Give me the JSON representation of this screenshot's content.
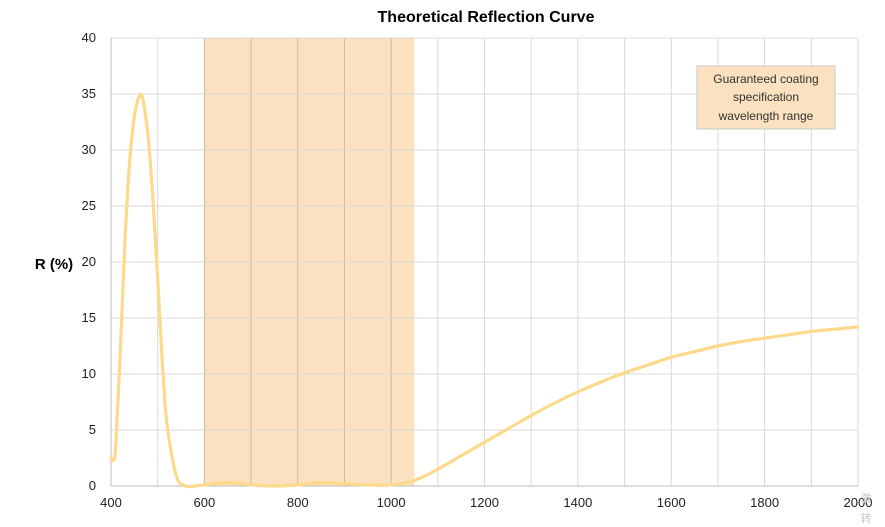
{
  "chart_data": {
    "type": "line",
    "title": "Theoretical Reflection Curve",
    "xlabel": "",
    "ylabel": "R (%)",
    "xlim": [
      400,
      2000
    ],
    "ylim": [
      0,
      40
    ],
    "x_ticks": [
      400,
      600,
      800,
      1000,
      1200,
      1400,
      1600,
      1800,
      2000
    ],
    "y_ticks": [
      0,
      5,
      10,
      15,
      20,
      25,
      30,
      35,
      40
    ],
    "grid": true,
    "highlight_band": {
      "x_range": [
        600,
        1050
      ],
      "color": "#fbe1bf",
      "note": [
        "Guaranteed coating",
        "specification",
        "wavelength range"
      ]
    },
    "series": [
      {
        "color": "#fcd98b",
        "x": [
          400,
          405,
          410,
          420,
          430,
          440,
          450,
          460,
          465,
          470,
          480,
          490,
          500,
          510,
          520,
          540,
          560,
          580,
          600,
          650,
          700,
          750,
          800,
          850,
          900,
          950,
          1000,
          1050,
          1100,
          1150,
          1200,
          1250,
          1300,
          1350,
          1400,
          1450,
          1500,
          1550,
          1600,
          1650,
          1700,
          1750,
          1800,
          1850,
          1900,
          1950,
          2000
        ],
        "y": [
          2.5,
          2.3,
          3.5,
          12,
          22,
          29,
          33,
          34.8,
          34.9,
          34.2,
          31,
          25.5,
          18.5,
          11,
          5.5,
          0.9,
          0,
          0,
          0.1,
          0.3,
          0.1,
          0,
          0.1,
          0.3,
          0.2,
          0.1,
          0.1,
          0.5,
          1.5,
          2.7,
          3.9,
          5.1,
          6.3,
          7.4,
          8.4,
          9.3,
          10.1,
          10.8,
          11.5,
          12.0,
          12.5,
          12.9,
          13.2,
          13.5,
          13.8,
          14.0,
          14.2
        ]
      }
    ]
  },
  "watermark": [
    "激",
    "转"
  ]
}
